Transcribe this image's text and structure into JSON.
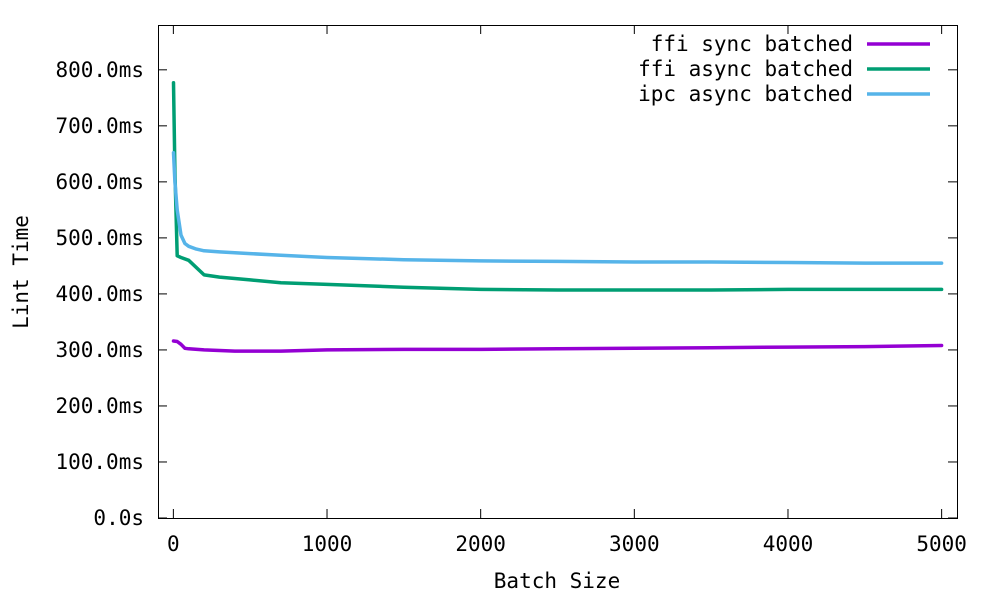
{
  "chart_data": {
    "type": "line",
    "title": "",
    "xlabel": "Batch Size",
    "ylabel": "Lint Time",
    "xlim": [
      -100,
      5100
    ],
    "ylim": [
      0,
      880
    ],
    "x_ticks": [
      0,
      1000,
      2000,
      3000,
      4000,
      5000
    ],
    "x_tick_labels": [
      "0",
      "1000",
      "2000",
      "3000",
      "4000",
      "5000"
    ],
    "y_ticks": [
      0,
      100,
      200,
      300,
      400,
      500,
      600,
      700,
      800
    ],
    "y_tick_labels": [
      "0.0s",
      "100.0ms",
      "200.0ms",
      "300.0ms",
      "400.0ms",
      "500.0ms",
      "600.0ms",
      "700.0ms",
      "800.0ms"
    ],
    "grid": false,
    "legend_position": "top-right",
    "series": [
      {
        "name": "ffi sync batched",
        "color": "#9400d3",
        "x": [
          1,
          25,
          50,
          75,
          100,
          200,
          300,
          400,
          500,
          700,
          1000,
          1500,
          2000,
          2500,
          3000,
          3500,
          4000,
          4500,
          5000
        ],
        "y": [
          316,
          315,
          310,
          303,
          302,
          300,
          299,
          298,
          298,
          298,
          300,
          301,
          301,
          302,
          303,
          304,
          305,
          306,
          308
        ]
      },
      {
        "name": "ffi async batched",
        "color": "#009e73",
        "x": [
          1,
          10,
          25,
          50,
          100,
          200,
          300,
          500,
          700,
          1000,
          1500,
          2000,
          2500,
          3000,
          3500,
          4000,
          4500,
          5000
        ],
        "y": [
          777,
          620,
          468,
          465,
          460,
          434,
          430,
          425,
          420,
          417,
          412,
          408,
          407,
          407,
          407,
          408,
          408,
          408
        ]
      },
      {
        "name": "ipc async batched",
        "color": "#56b4e9",
        "x": [
          1,
          10,
          25,
          50,
          75,
          100,
          150,
          200,
          300,
          500,
          700,
          1000,
          1500,
          2000,
          2500,
          3000,
          3500,
          4000,
          4500,
          5000
        ],
        "y": [
          652,
          600,
          550,
          505,
          490,
          485,
          480,
          477,
          475,
          472,
          469,
          465,
          461,
          459,
          458,
          457,
          457,
          456,
          455,
          455
        ]
      }
    ]
  }
}
